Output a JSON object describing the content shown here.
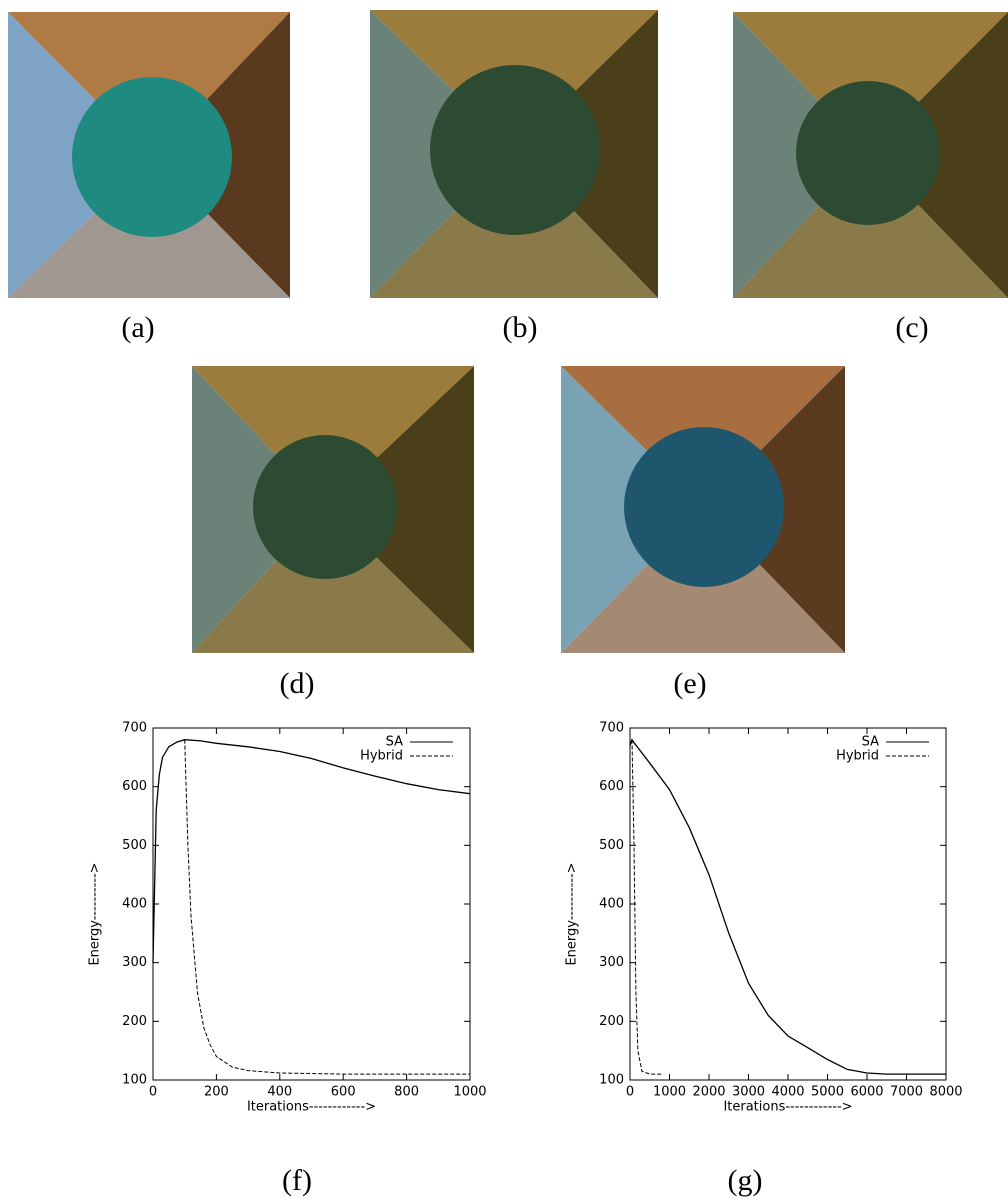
{
  "captions": [
    "(a)",
    "(b)",
    "(c)",
    "(d)",
    "(e)"
  ],
  "chart_data": [
    {
      "type": "line",
      "caption": "(f)",
      "xlabel": "Iterations------------>",
      "ylabel": "Energy---------->",
      "xlim": [
        0,
        1000
      ],
      "ylim": [
        100,
        700
      ],
      "xticks": [
        0,
        200,
        400,
        600,
        800,
        1000
      ],
      "yticks": [
        100,
        200,
        300,
        400,
        500,
        600,
        700
      ],
      "legend": "upper right",
      "series": [
        {
          "name": "SA",
          "color": "#000000",
          "style": "solid",
          "x": [
            0,
            10,
            20,
            30,
            50,
            75,
            100,
            150,
            200,
            300,
            400,
            500,
            600,
            700,
            800,
            900,
            1000
          ],
          "values": [
            300,
            560,
            620,
            650,
            668,
            676,
            680,
            678,
            674,
            668,
            660,
            648,
            632,
            618,
            605,
            595,
            588
          ]
        },
        {
          "name": "Hybrid",
          "color": "#000000",
          "style": "dashed",
          "x": [
            100,
            110,
            120,
            140,
            160,
            180,
            200,
            250,
            300,
            400,
            500,
            600,
            800,
            1000
          ],
          "values": [
            680,
            500,
            380,
            250,
            190,
            160,
            140,
            122,
            116,
            112,
            111,
            110,
            110,
            110
          ]
        }
      ]
    },
    {
      "type": "line",
      "caption": "(g)",
      "xlabel": "Iterations------------>",
      "ylabel": "Energy---------->",
      "xlim": [
        0,
        8000
      ],
      "ylim": [
        100,
        700
      ],
      "xticks": [
        0,
        1000,
        2000,
        3000,
        4000,
        5000,
        6000,
        7000,
        8000
      ],
      "yticks": [
        100,
        200,
        300,
        400,
        500,
        600,
        700
      ],
      "legend": "upper right",
      "series": [
        {
          "name": "SA",
          "color": "#000000",
          "style": "solid",
          "x": [
            0,
            50,
            100,
            500,
            1000,
            1500,
            2000,
            2500,
            3000,
            3500,
            4000,
            4500,
            5000,
            5500,
            6000,
            6500,
            7000,
            8000
          ],
          "values": [
            670,
            680,
            675,
            640,
            595,
            530,
            450,
            350,
            265,
            210,
            175,
            155,
            135,
            118,
            112,
            110,
            110,
            110
          ]
        },
        {
          "name": "Hybrid",
          "color": "#000000",
          "style": "dashed",
          "x": [
            0,
            50,
            100,
            150,
            200,
            300,
            500,
            800
          ],
          "values": [
            670,
            680,
            500,
            250,
            150,
            115,
            110,
            110
          ]
        }
      ]
    }
  ]
}
